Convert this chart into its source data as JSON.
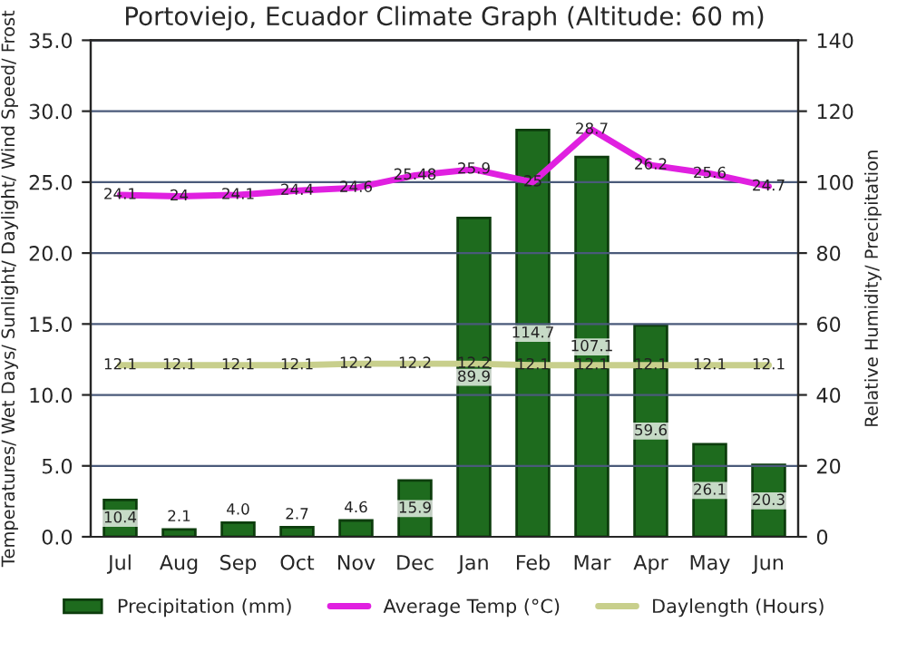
{
  "chart_data": {
    "type": "bar",
    "title": "Portoviejo, Ecuador Climate Graph (Altitude: 60 m)",
    "ylabel": "Temperatures/ Wet Days/ Sunlight/ Daylight/ Wind Speed/ Frost",
    "y2label": "Relative Humidity/ Precipitation",
    "categories": [
      "Jul",
      "Aug",
      "Sep",
      "Oct",
      "Nov",
      "Dec",
      "Jan",
      "Feb",
      "Mar",
      "Apr",
      "May",
      "Jun"
    ],
    "series": [
      {
        "name": "Precipitation (mm)",
        "axis": "y2",
        "color": "#1e6b1e",
        "values": [
          10.4,
          2.1,
          4.0,
          2.7,
          4.6,
          15.9,
          89.9,
          114.7,
          107.1,
          59.6,
          26.1,
          20.3
        ],
        "value_labels": [
          "10.4",
          "2.1",
          "4.0",
          "2.7",
          "4.6",
          "15.9",
          "89.9",
          "114.7",
          "107.1",
          "59.6",
          "26.1",
          "20.3"
        ]
      },
      {
        "name": "Average Temp (°C)",
        "type": "line",
        "color": "#e020e0",
        "values": [
          24.1,
          24,
          24.1,
          24.4,
          24.6,
          25.48,
          25.9,
          25,
          28.7,
          26.2,
          25.6,
          24.7
        ],
        "value_labels": [
          "24.1",
          "24",
          "24.1",
          "24.4",
          "24.6",
          "25.48",
          "25.9",
          "25",
          "28.7",
          "26.2",
          "25.6",
          "24.7"
        ]
      },
      {
        "name": "Daylength (Hours)",
        "type": "line",
        "color": "#c8cf8c",
        "values": [
          12.1,
          12.1,
          12.1,
          12.1,
          12.2,
          12.2,
          12.2,
          12.1,
          12.1,
          12.1,
          12.1,
          12.1
        ],
        "value_labels": [
          "12.1",
          "12.1",
          "12.1",
          "12.1",
          "12.2",
          "12.2",
          "12.2",
          "12.1",
          "12.1",
          "12.1",
          "12.1",
          "12.1"
        ]
      }
    ],
    "ylim": [
      0,
      35
    ],
    "yticks": [
      {
        "value": 0,
        "label": "0.0"
      },
      {
        "value": 5,
        "label": "5.0"
      },
      {
        "value": 10,
        "label": "10.0"
      },
      {
        "value": 15,
        "label": "15.0"
      },
      {
        "value": 20,
        "label": "20.0"
      },
      {
        "value": 25,
        "label": "25.0"
      },
      {
        "value": 30,
        "label": "30.0"
      },
      {
        "value": 35,
        "label": "35.0"
      }
    ],
    "y2lim": [
      0,
      140
    ],
    "y2ticks": [
      0,
      20,
      40,
      60,
      80,
      100,
      120,
      140
    ],
    "grid": "y",
    "legend": "bottom"
  }
}
